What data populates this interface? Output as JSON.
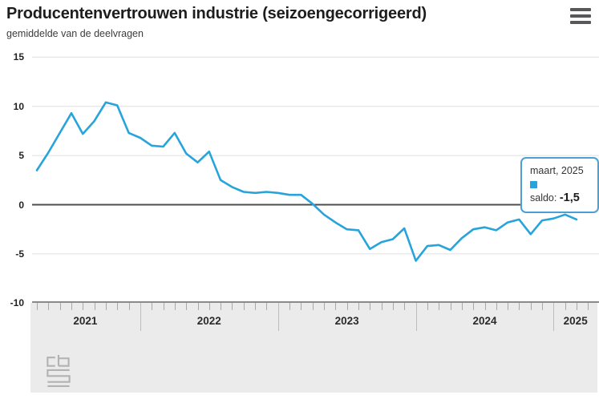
{
  "header": {
    "title": "Producentenvertrouwen industrie (seizoengecorrigeerd)",
    "subtitle": "gemiddelde van de deelvragen"
  },
  "tooltip": {
    "date_label": "maart, 2025",
    "series_label": "saldo:",
    "value_label": "-1,5",
    "marker_color": "#27a4dc",
    "border_color": "#4aa0d5"
  },
  "chart_data": {
    "type": "line",
    "title": "Producentenvertrouwen industrie (seizoengecorrigeerd)",
    "subtitle": "gemiddelde van de deelvragen",
    "ylabel": "",
    "xlabel": "",
    "ylim": [
      -10,
      15
    ],
    "yticks": [
      15,
      10,
      5,
      0,
      -5,
      -10
    ],
    "grid": true,
    "legend_position": "none",
    "line_color": "#27a4dc",
    "zero_line_color": "#4d4d4d",
    "x_year_labels": [
      "2021",
      "2022",
      "2023",
      "2024",
      "2025"
    ],
    "x": [
      "2021-04",
      "2021-05",
      "2021-06",
      "2021-07",
      "2021-08",
      "2021-09",
      "2021-10",
      "2021-11",
      "2021-12",
      "2022-01",
      "2022-02",
      "2022-03",
      "2022-04",
      "2022-05",
      "2022-06",
      "2022-07",
      "2022-08",
      "2022-09",
      "2022-10",
      "2022-11",
      "2022-12",
      "2023-01",
      "2023-02",
      "2023-03",
      "2023-04",
      "2023-05",
      "2023-06",
      "2023-07",
      "2023-08",
      "2023-09",
      "2023-10",
      "2023-11",
      "2023-12",
      "2024-01",
      "2024-02",
      "2024-03",
      "2024-04",
      "2024-05",
      "2024-06",
      "2024-07",
      "2024-08",
      "2024-09",
      "2024-10",
      "2024-11",
      "2024-12",
      "2025-01",
      "2025-02",
      "2025-03"
    ],
    "series": [
      {
        "name": "saldo",
        "values": [
          3.5,
          5.3,
          7.3,
          9.3,
          7.2,
          8.5,
          10.4,
          10.1,
          7.3,
          6.8,
          6.0,
          5.9,
          7.3,
          5.2,
          4.3,
          5.4,
          2.5,
          1.8,
          1.3,
          1.2,
          1.3,
          1.2,
          1.0,
          1.0,
          0.1,
          -1.0,
          -1.8,
          -2.5,
          -2.6,
          -4.5,
          -3.8,
          -3.5,
          -2.4,
          -5.7,
          -4.2,
          -4.1,
          -4.6,
          -3.4,
          -2.5,
          -2.3,
          -2.6,
          -1.8,
          -1.5,
          -3.0,
          -1.6,
          -1.4,
          -1.0,
          -1.5
        ]
      }
    ],
    "last_point": {
      "x": "2025-03",
      "label": "maart, 2025",
      "value": -1.5
    }
  }
}
